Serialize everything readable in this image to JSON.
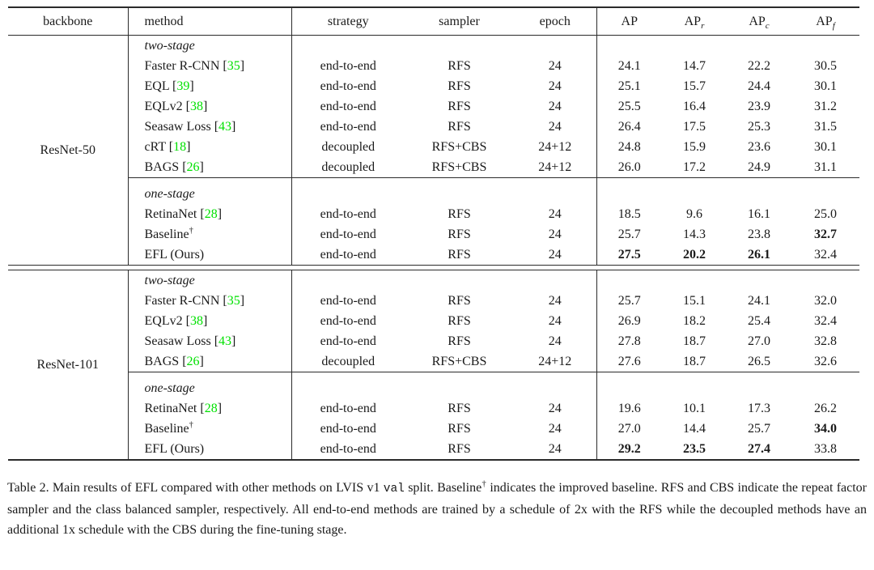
{
  "table": {
    "cite_color": "#00e100",
    "columns": [
      {
        "key": "backbone",
        "label": "backbone"
      },
      {
        "key": "method",
        "label": "method"
      },
      {
        "key": "strategy",
        "label": "strategy"
      },
      {
        "key": "sampler",
        "label": "sampler"
      },
      {
        "key": "epoch",
        "label": "epoch"
      },
      {
        "key": "ap",
        "label": "AP",
        "sub": ""
      },
      {
        "key": "ap_r",
        "label": "AP",
        "sub": "r"
      },
      {
        "key": "ap_c",
        "label": "AP",
        "sub": "c"
      },
      {
        "key": "ap_f",
        "label": "AP",
        "sub": "f"
      }
    ],
    "blocks": [
      {
        "backbone": "ResNet-50",
        "sections": [
          {
            "title": "two-stage",
            "rows": [
              {
                "method": {
                  "name": "Faster R-CNN",
                  "cite": "35"
                },
                "strategy": "end-to-end",
                "sampler": "RFS",
                "epoch": "24",
                "metrics": [
                  "24.1",
                  "14.7",
                  "22.2",
                  "30.5"
                ],
                "bold": [
                  false,
                  false,
                  false,
                  false
                ]
              },
              {
                "method": {
                  "name": "EQL",
                  "cite": "39"
                },
                "strategy": "end-to-end",
                "sampler": "RFS",
                "epoch": "24",
                "metrics": [
                  "25.1",
                  "15.7",
                  "24.4",
                  "30.1"
                ],
                "bold": [
                  false,
                  false,
                  false,
                  false
                ]
              },
              {
                "method": {
                  "name": "EQLv2",
                  "cite": "38"
                },
                "strategy": "end-to-end",
                "sampler": "RFS",
                "epoch": "24",
                "metrics": [
                  "25.5",
                  "16.4",
                  "23.9",
                  "31.2"
                ],
                "bold": [
                  false,
                  false,
                  false,
                  false
                ]
              },
              {
                "method": {
                  "name": "Seasaw Loss",
                  "cite": "43"
                },
                "strategy": "end-to-end",
                "sampler": "RFS",
                "epoch": "24",
                "metrics": [
                  "26.4",
                  "17.5",
                  "25.3",
                  "31.5"
                ],
                "bold": [
                  false,
                  false,
                  false,
                  false
                ]
              },
              {
                "method": {
                  "name": "cRT",
                  "cite": "18"
                },
                "strategy": "decoupled",
                "sampler": "RFS+CBS",
                "epoch": "24+12",
                "metrics": [
                  "24.8",
                  "15.9",
                  "23.6",
                  "30.1"
                ],
                "bold": [
                  false,
                  false,
                  false,
                  false
                ]
              },
              {
                "method": {
                  "name": "BAGS",
                  "cite": "26"
                },
                "strategy": "decoupled",
                "sampler": "RFS+CBS",
                "epoch": "24+12",
                "metrics": [
                  "26.0",
                  "17.2",
                  "24.9",
                  "31.1"
                ],
                "bold": [
                  false,
                  false,
                  false,
                  false
                ]
              }
            ]
          },
          {
            "title": "one-stage",
            "rows": [
              {
                "method": {
                  "name": "RetinaNet",
                  "cite": "28"
                },
                "strategy": "end-to-end",
                "sampler": "RFS",
                "epoch": "24",
                "metrics": [
                  "18.5",
                  "9.6",
                  "16.1",
                  "25.0"
                ],
                "bold": [
                  false,
                  false,
                  false,
                  false
                ]
              },
              {
                "method": {
                  "name": "Baseline",
                  "sup": "†"
                },
                "strategy": "end-to-end",
                "sampler": "RFS",
                "epoch": "24",
                "metrics": [
                  "25.7",
                  "14.3",
                  "23.8",
                  "32.7"
                ],
                "bold": [
                  false,
                  false,
                  false,
                  true
                ]
              },
              {
                "method": {
                  "name": "EFL (Ours)"
                },
                "strategy": "end-to-end",
                "sampler": "RFS",
                "epoch": "24",
                "metrics": [
                  "27.5",
                  "20.2",
                  "26.1",
                  "32.4"
                ],
                "bold": [
                  true,
                  true,
                  true,
                  false
                ]
              }
            ]
          }
        ]
      },
      {
        "backbone": "ResNet-101",
        "sections": [
          {
            "title": "two-stage",
            "rows": [
              {
                "method": {
                  "name": "Faster R-CNN",
                  "cite": "35"
                },
                "strategy": "end-to-end",
                "sampler": "RFS",
                "epoch": "24",
                "metrics": [
                  "25.7",
                  "15.1",
                  "24.1",
                  "32.0"
                ],
                "bold": [
                  false,
                  false,
                  false,
                  false
                ]
              },
              {
                "method": {
                  "name": "EQLv2",
                  "cite": "38"
                },
                "strategy": "end-to-end",
                "sampler": "RFS",
                "epoch": "24",
                "metrics": [
                  "26.9",
                  "18.2",
                  "25.4",
                  "32.4"
                ],
                "bold": [
                  false,
                  false,
                  false,
                  false
                ]
              },
              {
                "method": {
                  "name": "Seasaw Loss",
                  "cite": "43"
                },
                "strategy": "end-to-end",
                "sampler": "RFS",
                "epoch": "24",
                "metrics": [
                  "27.8",
                  "18.7",
                  "27.0",
                  "32.8"
                ],
                "bold": [
                  false,
                  false,
                  false,
                  false
                ]
              },
              {
                "method": {
                  "name": "BAGS",
                  "cite": "26"
                },
                "strategy": "decoupled",
                "sampler": "RFS+CBS",
                "epoch": "24+12",
                "metrics": [
                  "27.6",
                  "18.7",
                  "26.5",
                  "32.6"
                ],
                "bold": [
                  false,
                  false,
                  false,
                  false
                ]
              }
            ]
          },
          {
            "title": "one-stage",
            "rows": [
              {
                "method": {
                  "name": "RetinaNet",
                  "cite": "28"
                },
                "strategy": "end-to-end",
                "sampler": "RFS",
                "epoch": "24",
                "metrics": [
                  "19.6",
                  "10.1",
                  "17.3",
                  "26.2"
                ],
                "bold": [
                  false,
                  false,
                  false,
                  false
                ]
              },
              {
                "method": {
                  "name": "Baseline",
                  "sup": "†"
                },
                "strategy": "end-to-end",
                "sampler": "RFS",
                "epoch": "24",
                "metrics": [
                  "27.0",
                  "14.4",
                  "25.7",
                  "34.0"
                ],
                "bold": [
                  false,
                  false,
                  false,
                  true
                ]
              },
              {
                "method": {
                  "name": "EFL (Ours)"
                },
                "strategy": "end-to-end",
                "sampler": "RFS",
                "epoch": "24",
                "metrics": [
                  "29.2",
                  "23.5",
                  "27.4",
                  "33.8"
                ],
                "bold": [
                  true,
                  true,
                  true,
                  false
                ]
              }
            ]
          }
        ]
      }
    ]
  },
  "caption": {
    "segments": [
      {
        "t": "Table 2.  Main results of EFL compared with other methods on LVIS v1 ",
        "style": "normal"
      },
      {
        "t": "val",
        "style": "mono"
      },
      {
        "t": " split. Baseline",
        "style": "normal"
      },
      {
        "t": "†",
        "style": "sup"
      },
      {
        "t": " indicates the improved baseline. RFS and CBS indicate the repeat factor sampler and the class balanced sampler, respectively. All end-to-end methods are trained by a schedule of 2x with the RFS while the decoupled methods have an additional 1x schedule with the CBS during the fine-tuning stage.",
        "style": "normal"
      }
    ]
  }
}
